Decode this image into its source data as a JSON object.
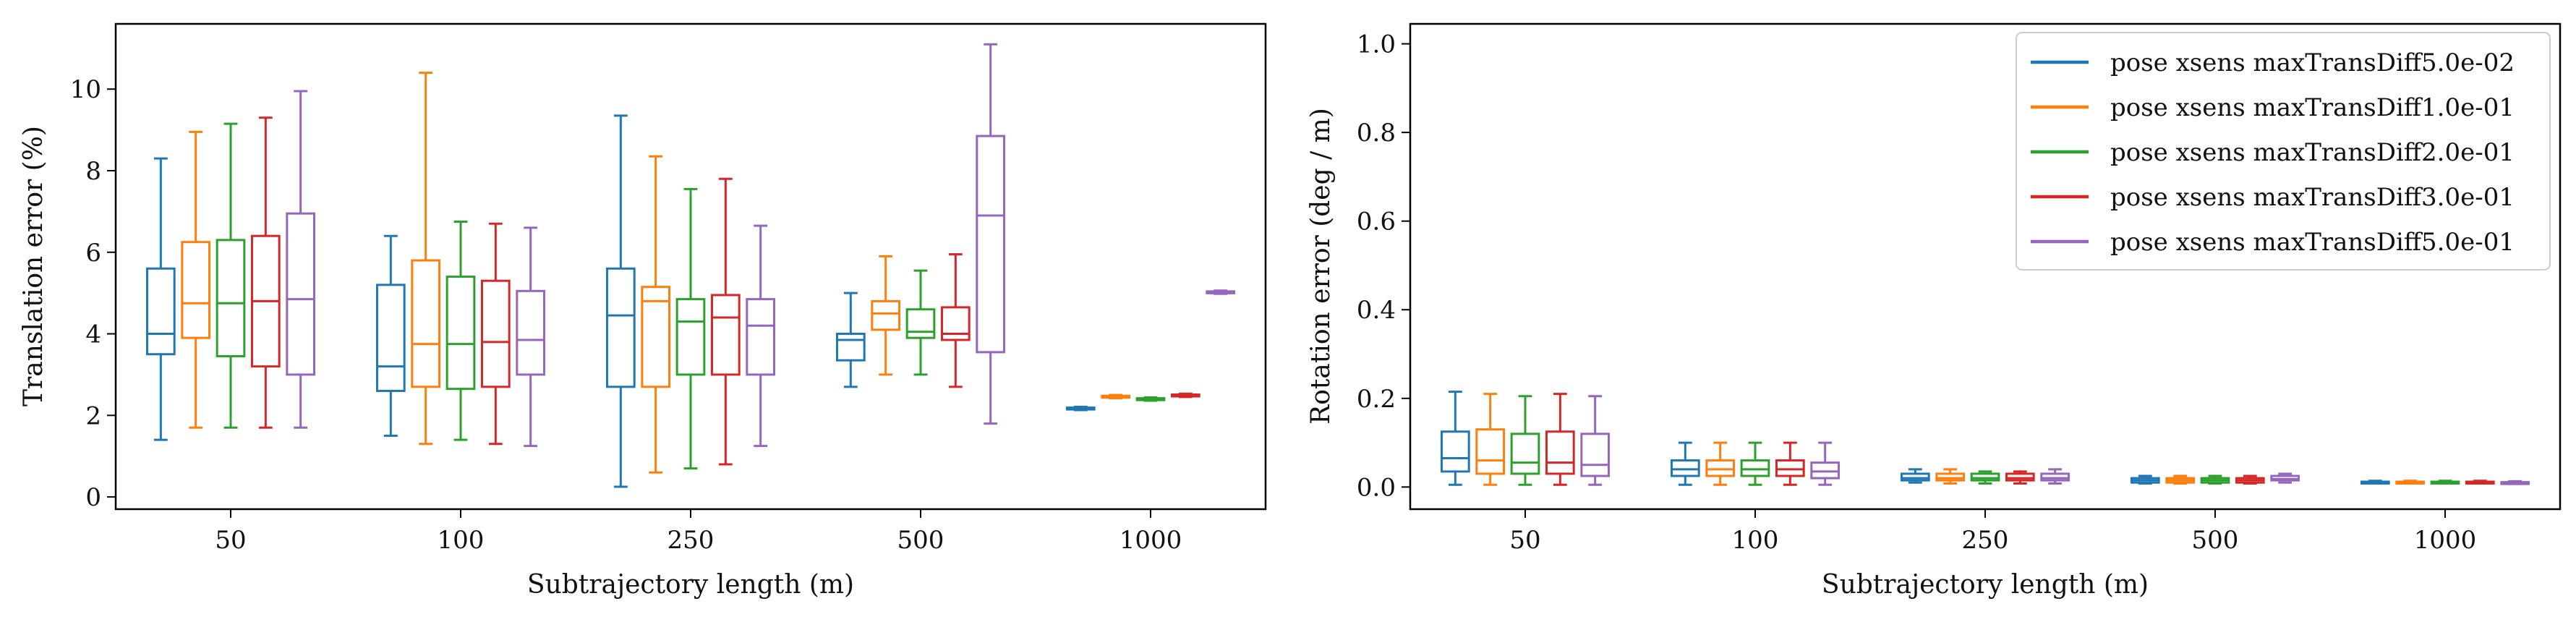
{
  "chart_data": [
    {
      "type": "boxplot",
      "xlabel": "Subtrajectory length (m)",
      "ylabel": "Translation error (%)",
      "ylim": [
        -0.3,
        11.6
      ],
      "yticks": [
        "0",
        "2",
        "4",
        "6",
        "8",
        "10"
      ],
      "ytick_values": [
        0,
        2,
        4,
        6,
        8,
        10
      ],
      "categories": [
        "50",
        "100",
        "250",
        "500",
        "1000"
      ],
      "legend": "none",
      "series": [
        {
          "name": "pose xsens maxTransDiff5.0e-02",
          "color": "#1f77b4",
          "boxes": [
            {
              "whislo": 1.4,
              "q1": 3.5,
              "med": 4.0,
              "q3": 5.6,
              "whishi": 8.3
            },
            {
              "whislo": 1.5,
              "q1": 2.6,
              "med": 3.2,
              "q3": 5.2,
              "whishi": 6.4
            },
            {
              "whislo": 0.25,
              "q1": 2.7,
              "med": 4.45,
              "q3": 5.6,
              "whishi": 9.35
            },
            {
              "whislo": 2.7,
              "q1": 3.35,
              "med": 3.85,
              "q3": 4.0,
              "whishi": 5.0
            },
            {
              "whislo": 2.13,
              "q1": 2.15,
              "med": 2.17,
              "q3": 2.19,
              "whishi": 2.21
            }
          ]
        },
        {
          "name": "pose xsens maxTransDiff1.0e-01",
          "color": "#ff7f0e",
          "boxes": [
            {
              "whislo": 1.7,
              "q1": 3.9,
              "med": 4.75,
              "q3": 6.25,
              "whishi": 8.95
            },
            {
              "whislo": 1.3,
              "q1": 2.7,
              "med": 3.75,
              "q3": 5.8,
              "whishi": 10.4
            },
            {
              "whislo": 0.6,
              "q1": 2.7,
              "med": 4.8,
              "q3": 5.15,
              "whishi": 8.35
            },
            {
              "whislo": 3.0,
              "q1": 4.1,
              "med": 4.5,
              "q3": 4.8,
              "whishi": 5.9
            },
            {
              "whislo": 2.42,
              "q1": 2.44,
              "med": 2.46,
              "q3": 2.48,
              "whishi": 2.5
            }
          ]
        },
        {
          "name": "pose xsens maxTransDiff2.0e-01",
          "color": "#2ca02c",
          "boxes": [
            {
              "whislo": 1.7,
              "q1": 3.45,
              "med": 4.75,
              "q3": 6.3,
              "whishi": 9.15
            },
            {
              "whislo": 1.4,
              "q1": 2.65,
              "med": 3.75,
              "q3": 5.4,
              "whishi": 6.75
            },
            {
              "whislo": 0.7,
              "q1": 3.0,
              "med": 4.3,
              "q3": 4.85,
              "whishi": 7.55
            },
            {
              "whislo": 3.0,
              "q1": 3.9,
              "med": 4.05,
              "q3": 4.6,
              "whishi": 5.55
            },
            {
              "whislo": 2.36,
              "q1": 2.38,
              "med": 2.4,
              "q3": 2.42,
              "whishi": 2.44
            }
          ]
        },
        {
          "name": "pose xsens maxTransDiff3.0e-01",
          "color": "#d62728",
          "boxes": [
            {
              "whislo": 1.7,
              "q1": 3.2,
              "med": 4.8,
              "q3": 6.4,
              "whishi": 9.3
            },
            {
              "whislo": 1.3,
              "q1": 2.7,
              "med": 3.8,
              "q3": 5.3,
              "whishi": 6.7
            },
            {
              "whislo": 0.8,
              "q1": 3.0,
              "med": 4.4,
              "q3": 4.95,
              "whishi": 7.8
            },
            {
              "whislo": 2.7,
              "q1": 3.85,
              "med": 4.0,
              "q3": 4.65,
              "whishi": 5.95
            },
            {
              "whislo": 2.45,
              "q1": 2.47,
              "med": 2.49,
              "q3": 2.51,
              "whishi": 2.53
            }
          ]
        },
        {
          "name": "pose xsens maxTransDiff5.0e-01",
          "color": "#9467bd",
          "boxes": [
            {
              "whislo": 1.7,
              "q1": 3.0,
              "med": 4.85,
              "q3": 6.95,
              "whishi": 9.95
            },
            {
              "whislo": 1.25,
              "q1": 3.0,
              "med": 3.85,
              "q3": 5.05,
              "whishi": 6.6
            },
            {
              "whislo": 1.25,
              "q1": 3.0,
              "med": 4.2,
              "q3": 4.85,
              "whishi": 6.65
            },
            {
              "whislo": 1.8,
              "q1": 3.55,
              "med": 6.9,
              "q3": 8.85,
              "whishi": 11.1
            },
            {
              "whislo": 4.98,
              "q1": 5.0,
              "med": 5.02,
              "q3": 5.04,
              "whishi": 5.06
            }
          ]
        }
      ]
    },
    {
      "type": "boxplot",
      "xlabel": "Subtrajectory length (m)",
      "ylabel": "Rotation error (deg / m)",
      "ylim": [
        -0.05,
        1.045
      ],
      "yticks": [
        "0.0",
        "0.2",
        "0.4",
        "0.6",
        "0.8",
        "1.0"
      ],
      "ytick_values": [
        0.0,
        0.2,
        0.4,
        0.6,
        0.8,
        1.0
      ],
      "categories": [
        "50",
        "100",
        "250",
        "500",
        "1000"
      ],
      "legend": "top-right",
      "series": [
        {
          "name": "pose xsens maxTransDiff5.0e-02",
          "color": "#1f77b4",
          "boxes": [
            {
              "whislo": 0.005,
              "q1": 0.035,
              "med": 0.065,
              "q3": 0.125,
              "whishi": 0.215
            },
            {
              "whislo": 0.005,
              "q1": 0.025,
              "med": 0.04,
              "q3": 0.06,
              "whishi": 0.1
            },
            {
              "whislo": 0.01,
              "q1": 0.015,
              "med": 0.02,
              "q3": 0.03,
              "whishi": 0.04
            },
            {
              "whislo": 0.008,
              "q1": 0.01,
              "med": 0.015,
              "q3": 0.02,
              "whishi": 0.025
            },
            {
              "whislo": 0.008,
              "q1": 0.009,
              "med": 0.01,
              "q3": 0.012,
              "whishi": 0.014
            }
          ]
        },
        {
          "name": "pose xsens maxTransDiff1.0e-01",
          "color": "#ff7f0e",
          "boxes": [
            {
              "whislo": 0.005,
              "q1": 0.03,
              "med": 0.06,
              "q3": 0.13,
              "whishi": 0.21
            },
            {
              "whislo": 0.005,
              "q1": 0.025,
              "med": 0.04,
              "q3": 0.06,
              "whishi": 0.1
            },
            {
              "whislo": 0.008,
              "q1": 0.015,
              "med": 0.02,
              "q3": 0.03,
              "whishi": 0.04
            },
            {
              "whislo": 0.008,
              "q1": 0.01,
              "med": 0.015,
              "q3": 0.02,
              "whishi": 0.025
            },
            {
              "whislo": 0.008,
              "q1": 0.009,
              "med": 0.01,
              "q3": 0.012,
              "whishi": 0.014
            }
          ]
        },
        {
          "name": "pose xsens maxTransDiff2.0e-01",
          "color": "#2ca02c",
          "boxes": [
            {
              "whislo": 0.005,
              "q1": 0.03,
              "med": 0.055,
              "q3": 0.12,
              "whishi": 0.205
            },
            {
              "whislo": 0.005,
              "q1": 0.025,
              "med": 0.04,
              "q3": 0.06,
              "whishi": 0.1
            },
            {
              "whislo": 0.008,
              "q1": 0.015,
              "med": 0.02,
              "q3": 0.03,
              "whishi": 0.035
            },
            {
              "whislo": 0.008,
              "q1": 0.01,
              "med": 0.015,
              "q3": 0.02,
              "whishi": 0.025
            },
            {
              "whislo": 0.008,
              "q1": 0.009,
              "med": 0.01,
              "q3": 0.012,
              "whishi": 0.014
            }
          ]
        },
        {
          "name": "pose xsens maxTransDiff3.0e-01",
          "color": "#d62728",
          "boxes": [
            {
              "whislo": 0.005,
              "q1": 0.03,
              "med": 0.055,
              "q3": 0.125,
              "whishi": 0.21
            },
            {
              "whislo": 0.005,
              "q1": 0.025,
              "med": 0.04,
              "q3": 0.06,
              "whishi": 0.1
            },
            {
              "whislo": 0.008,
              "q1": 0.015,
              "med": 0.02,
              "q3": 0.03,
              "whishi": 0.035
            },
            {
              "whislo": 0.008,
              "q1": 0.01,
              "med": 0.015,
              "q3": 0.02,
              "whishi": 0.025
            },
            {
              "whislo": 0.008,
              "q1": 0.009,
              "med": 0.01,
              "q3": 0.012,
              "whishi": 0.014
            }
          ]
        },
        {
          "name": "pose xsens maxTransDiff5.0e-01",
          "color": "#9467bd",
          "boxes": [
            {
              "whislo": 0.005,
              "q1": 0.025,
              "med": 0.05,
              "q3": 0.12,
              "whishi": 0.205
            },
            {
              "whislo": 0.005,
              "q1": 0.02,
              "med": 0.035,
              "q3": 0.055,
              "whishi": 0.1
            },
            {
              "whislo": 0.008,
              "q1": 0.015,
              "med": 0.02,
              "q3": 0.03,
              "whishi": 0.04
            },
            {
              "whislo": 0.01,
              "q1": 0.015,
              "med": 0.018,
              "q3": 0.025,
              "whishi": 0.03
            },
            {
              "whislo": 0.007,
              "q1": 0.008,
              "med": 0.009,
              "q3": 0.011,
              "whishi": 0.013
            }
          ]
        }
      ]
    }
  ]
}
